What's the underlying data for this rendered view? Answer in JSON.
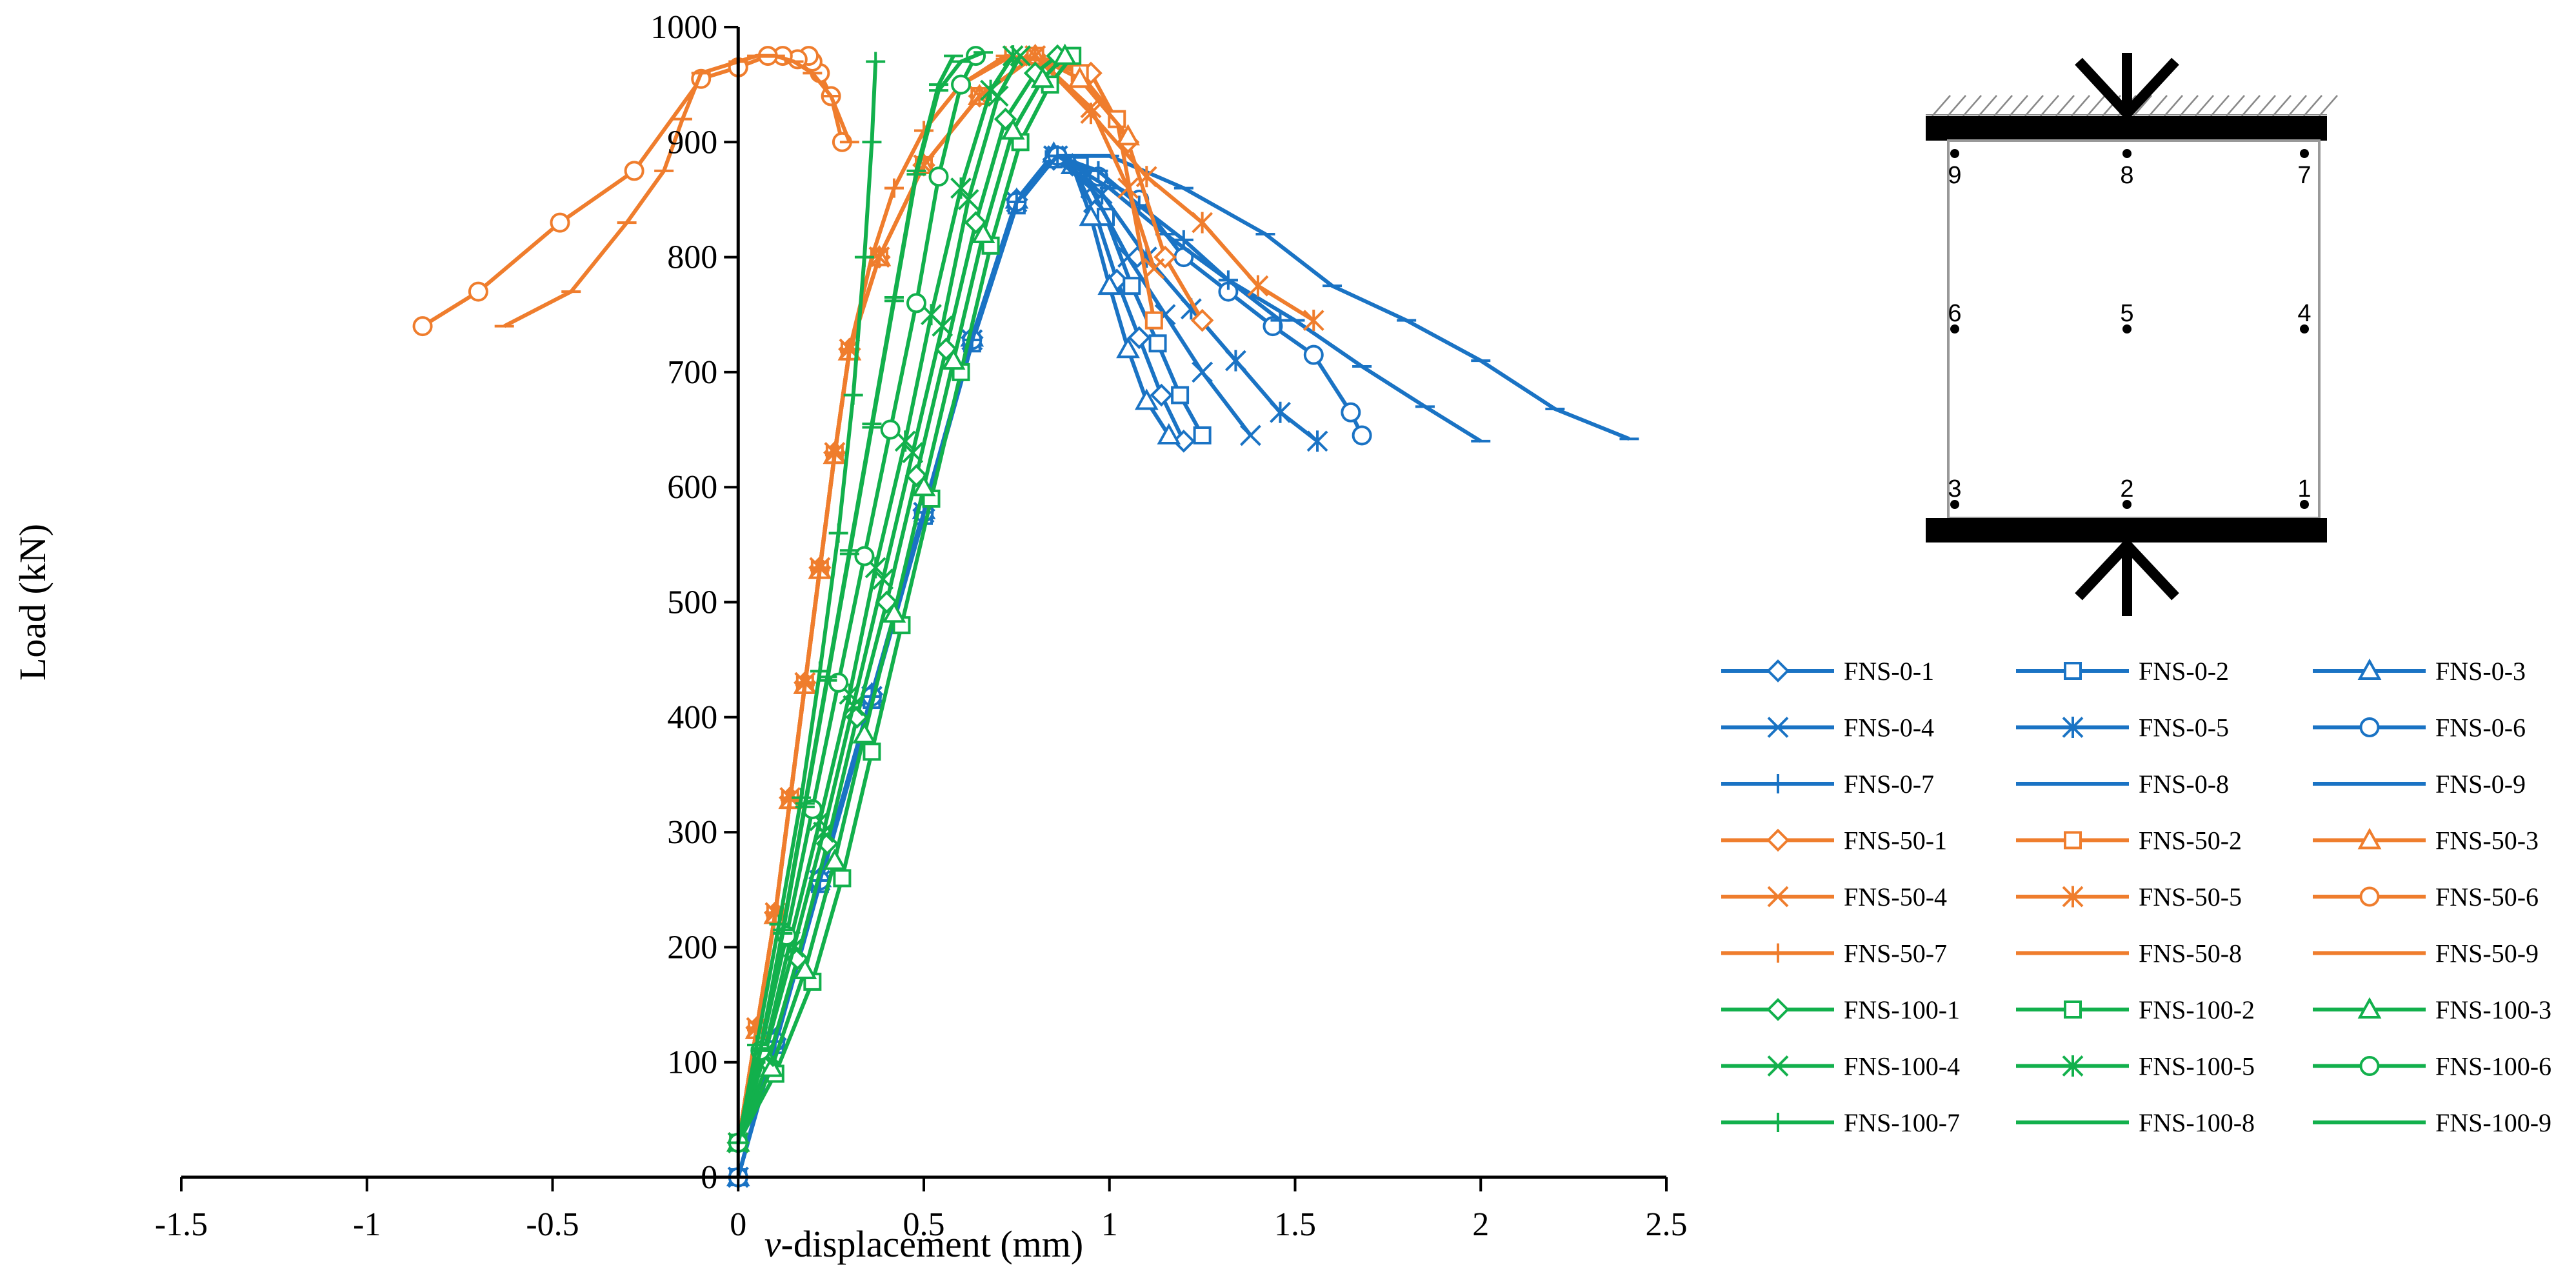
{
  "chart_data": {
    "type": "line",
    "xlabel_italic": "v",
    "xlabel_rest": "-displacement (mm)",
    "ylabel": "Load (kN)",
    "xlim": [
      -1.5,
      2.5
    ],
    "ylim": [
      0,
      1000
    ],
    "xticks": [
      -1.5,
      -1,
      -0.5,
      0,
      0.5,
      1,
      1.5,
      2,
      2.5
    ],
    "xtick_labels": [
      "-1.5",
      "-1",
      "-0.5",
      "0",
      "0.5",
      "1",
      "1.5",
      "2",
      "2.5"
    ],
    "yticks": [
      0,
      100,
      200,
      300,
      400,
      500,
      600,
      700,
      800,
      900,
      1000
    ],
    "ytick_labels": [
      "0",
      "100",
      "200",
      "300",
      "400",
      "500",
      "600",
      "700",
      "800",
      "900",
      "1000"
    ],
    "grid": false,
    "legend_position": "right",
    "group_colors": {
      "FNS-0": "#1a73c4",
      "FNS-50": "#ef7d2d",
      "FNS-100": "#12b04c"
    },
    "series": [
      {
        "name": "FNS-0-1",
        "color": "#1a73c4",
        "marker": "diamond",
        "x": [
          0,
          0.1,
          0.22,
          0.36,
          0.5,
          0.63,
          0.75,
          0.85,
          0.9,
          0.96,
          1.02,
          1.08,
          1.14,
          1.2
        ],
        "y": [
          0,
          120,
          260,
          420,
          580,
          730,
          850,
          885,
          880,
          840,
          780,
          730,
          680,
          640
        ]
      },
      {
        "name": "FNS-0-2",
        "color": "#1a73c4",
        "marker": "square",
        "x": [
          0,
          0.1,
          0.22,
          0.36,
          0.5,
          0.63,
          0.75,
          0.85,
          0.92,
          0.99,
          1.06,
          1.13,
          1.19,
          1.25
        ],
        "y": [
          0,
          115,
          255,
          415,
          575,
          725,
          845,
          885,
          880,
          835,
          775,
          725,
          680,
          645
        ]
      },
      {
        "name": "FNS-0-3",
        "color": "#1a73c4",
        "marker": "triangle",
        "x": [
          0,
          0.1,
          0.22,
          0.36,
          0.5,
          0.63,
          0.75,
          0.85,
          0.9,
          0.95,
          1.0,
          1.05,
          1.1,
          1.16
        ],
        "y": [
          0,
          120,
          260,
          420,
          580,
          730,
          850,
          890,
          880,
          835,
          775,
          720,
          675,
          645
        ]
      },
      {
        "name": "FNS-0-4",
        "color": "#1a73c4",
        "marker": "x",
        "x": [
          0,
          0.1,
          0.22,
          0.36,
          0.5,
          0.63,
          0.75,
          0.85,
          0.95,
          1.05,
          1.15,
          1.25,
          1.38
        ],
        "y": [
          0,
          118,
          258,
          418,
          578,
          728,
          848,
          888,
          860,
          800,
          750,
          700,
          645
        ]
      },
      {
        "name": "FNS-0-5",
        "color": "#1a73c4",
        "marker": "asterisk",
        "x": [
          0,
          0.1,
          0.22,
          0.36,
          0.5,
          0.63,
          0.75,
          0.86,
          0.98,
          1.1,
          1.22,
          1.34,
          1.46,
          1.56
        ],
        "y": [
          0,
          118,
          258,
          418,
          578,
          728,
          848,
          888,
          855,
          800,
          755,
          710,
          665,
          640
        ]
      },
      {
        "name": "FNS-0-6",
        "color": "#1a73c4",
        "marker": "circle",
        "x": [
          0,
          0.1,
          0.22,
          0.36,
          0.5,
          0.63,
          0.75,
          0.86,
          0.97,
          1.08,
          1.2,
          1.32,
          1.44,
          1.55,
          1.65,
          1.68
        ],
        "y": [
          0,
          118,
          258,
          418,
          578,
          728,
          848,
          888,
          870,
          850,
          800,
          770,
          740,
          715,
          665,
          645
        ]
      },
      {
        "name": "FNS-0-7",
        "color": "#1a73c4",
        "marker": "plus",
        "x": [
          0,
          0.1,
          0.22,
          0.36,
          0.5,
          0.63,
          0.75,
          0.86,
          0.97,
          1.08,
          1.2,
          1.32,
          1.46
        ],
        "y": [
          0,
          118,
          258,
          418,
          578,
          728,
          848,
          888,
          875,
          845,
          815,
          780,
          745
        ]
      },
      {
        "name": "FNS-0-8",
        "color": "#1a73c4",
        "marker": "dash",
        "x": [
          0,
          0.1,
          0.22,
          0.36,
          0.5,
          0.63,
          0.75,
          0.86,
          1.0,
          1.15,
          1.32,
          1.5,
          1.68,
          1.85,
          2.0
        ],
        "y": [
          0,
          118,
          258,
          418,
          578,
          728,
          848,
          888,
          860,
          820,
          780,
          745,
          705,
          670,
          640
        ]
      },
      {
        "name": "FNS-0-9",
        "color": "#1a73c4",
        "marker": "dash",
        "x": [
          0,
          0.1,
          0.22,
          0.36,
          0.5,
          0.63,
          0.75,
          0.86,
          1.0,
          1.2,
          1.42,
          1.6,
          1.8,
          2.0,
          2.2,
          2.4
        ],
        "y": [
          0,
          118,
          258,
          418,
          578,
          728,
          848,
          888,
          888,
          860,
          820,
          775,
          745,
          710,
          668,
          642
        ]
      },
      {
        "name": "FNS-50-1",
        "color": "#ef7d2d",
        "marker": "diamond",
        "x": [
          0,
          0.05,
          0.1,
          0.14,
          0.18,
          0.22,
          0.26,
          0.3,
          0.38,
          0.5,
          0.65,
          0.8,
          0.95,
          1.05,
          1.15,
          1.25
        ],
        "y": [
          30,
          130,
          230,
          330,
          430,
          530,
          630,
          720,
          800,
          880,
          940,
          975,
          960,
          900,
          800,
          745
        ]
      },
      {
        "name": "FNS-50-2",
        "color": "#ef7d2d",
        "marker": "square",
        "x": [
          0,
          0.05,
          0.1,
          0.14,
          0.18,
          0.22,
          0.26,
          0.3,
          0.38,
          0.5,
          0.65,
          0.8,
          0.92,
          1.02,
          1.12
        ],
        "y": [
          30,
          128,
          228,
          328,
          428,
          528,
          628,
          718,
          800,
          880,
          940,
          975,
          960,
          920,
          745
        ]
      },
      {
        "name": "FNS-50-3",
        "color": "#ef7d2d",
        "marker": "triangle",
        "x": [
          0,
          0.05,
          0.1,
          0.14,
          0.18,
          0.22,
          0.26,
          0.3,
          0.38,
          0.5,
          0.65,
          0.8,
          0.92,
          1.05
        ],
        "y": [
          30,
          128,
          228,
          328,
          428,
          528,
          628,
          718,
          800,
          880,
          940,
          975,
          955,
          905
        ]
      },
      {
        "name": "FNS-50-4",
        "color": "#ef7d2d",
        "marker": "x",
        "x": [
          0,
          0.05,
          0.1,
          0.14,
          0.18,
          0.22,
          0.26,
          0.3,
          0.38,
          0.5,
          0.65,
          0.8,
          0.95,
          1.05,
          1.12
        ],
        "y": [
          30,
          130,
          230,
          330,
          430,
          530,
          630,
          720,
          800,
          880,
          940,
          975,
          930,
          860,
          790
        ]
      },
      {
        "name": "FNS-50-5",
        "color": "#ef7d2d",
        "marker": "asterisk",
        "x": [
          0,
          0.05,
          0.1,
          0.14,
          0.18,
          0.22,
          0.26,
          0.3,
          0.38,
          0.5,
          0.65,
          0.8,
          0.95,
          1.1,
          1.25,
          1.4,
          1.55
        ],
        "y": [
          30,
          130,
          230,
          330,
          430,
          530,
          630,
          720,
          800,
          880,
          940,
          975,
          925,
          870,
          830,
          775,
          745
        ]
      },
      {
        "name": "FNS-50-6",
        "color": "#ef7d2d",
        "marker": "circle",
        "x": [
          0.28,
          0.25,
          0.22,
          0.2,
          0.19,
          0.16,
          0.12,
          0.08,
          0.0,
          -0.1,
          -0.28,
          -0.48,
          -0.7,
          -0.85
        ],
        "y": [
          900,
          940,
          960,
          970,
          975,
          972,
          975,
          975,
          965,
          955,
          875,
          830,
          770,
          740
        ]
      },
      {
        "name": "FNS-50-7",
        "color": "#ef7d2d",
        "marker": "plus",
        "x": [
          0,
          0.05,
          0.1,
          0.14,
          0.18,
          0.22,
          0.26,
          0.3,
          0.36,
          0.42,
          0.5,
          0.6,
          0.72,
          0.85
        ],
        "y": [
          30,
          130,
          230,
          330,
          430,
          530,
          630,
          720,
          800,
          860,
          910,
          950,
          975,
          970
        ]
      },
      {
        "name": "FNS-50-8",
        "color": "#ef7d2d",
        "marker": "dash",
        "x": [
          0,
          0.05,
          0.1,
          0.14,
          0.18,
          0.22,
          0.26,
          0.3,
          0.36,
          0.42,
          0.5,
          0.6,
          0.72,
          0.85
        ],
        "y": [
          30,
          128,
          228,
          328,
          428,
          528,
          628,
          718,
          800,
          860,
          910,
          950,
          972,
          965
        ]
      },
      {
        "name": "FNS-50-9",
        "color": "#ef7d2d",
        "marker": "dash",
        "x": [
          0.3,
          0.25,
          0.2,
          0.15,
          0.1,
          0.05,
          0.0,
          -0.1,
          -0.15,
          -0.2,
          -0.3,
          -0.45,
          -0.63
        ],
        "y": [
          900,
          940,
          960,
          970,
          975,
          975,
          970,
          960,
          920,
          875,
          830,
          770,
          740
        ]
      },
      {
        "name": "FNS-100-1",
        "color": "#12b04c",
        "marker": "diamond",
        "x": [
          0,
          0.08,
          0.16,
          0.24,
          0.32,
          0.4,
          0.48,
          0.56,
          0.64,
          0.72,
          0.8,
          0.86
        ],
        "y": [
          30,
          100,
          190,
          290,
          400,
          500,
          610,
          720,
          830,
          920,
          960,
          975
        ]
      },
      {
        "name": "FNS-100-2",
        "color": "#12b04c",
        "marker": "square",
        "x": [
          0,
          0.1,
          0.2,
          0.28,
          0.36,
          0.44,
          0.52,
          0.6,
          0.68,
          0.76,
          0.84,
          0.9
        ],
        "y": [
          30,
          90,
          170,
          260,
          370,
          480,
          590,
          700,
          810,
          900,
          950,
          975
        ]
      },
      {
        "name": "FNS-100-3",
        "color": "#12b04c",
        "marker": "triangle",
        "x": [
          0,
          0.09,
          0.18,
          0.26,
          0.34,
          0.42,
          0.5,
          0.58,
          0.66,
          0.74,
          0.82,
          0.88
        ],
        "y": [
          30,
          95,
          180,
          275,
          385,
          490,
          600,
          710,
          820,
          910,
          955,
          975
        ]
      },
      {
        "name": "FNS-100-4",
        "color": "#12b04c",
        "marker": "x",
        "x": [
          0,
          0.07,
          0.15,
          0.23,
          0.31,
          0.39,
          0.47,
          0.55,
          0.62,
          0.7,
          0.76
        ],
        "y": [
          30,
          105,
          200,
          300,
          410,
          520,
          630,
          740,
          850,
          940,
          975
        ]
      },
      {
        "name": "FNS-100-5",
        "color": "#12b04c",
        "marker": "asterisk",
        "x": [
          0,
          0.07,
          0.14,
          0.22,
          0.3,
          0.37,
          0.45,
          0.52,
          0.6,
          0.68,
          0.74
        ],
        "y": [
          30,
          108,
          205,
          310,
          420,
          530,
          640,
          750,
          860,
          945,
          975
        ]
      },
      {
        "name": "FNS-100-6",
        "color": "#12b04c",
        "marker": "circle",
        "x": [
          0,
          0.06,
          0.13,
          0.2,
          0.27,
          0.34,
          0.41,
          0.48,
          0.54,
          0.6,
          0.64
        ],
        "y": [
          30,
          110,
          210,
          320,
          430,
          540,
          650,
          760,
          870,
          950,
          975
        ]
      },
      {
        "name": "FNS-100-7",
        "color": "#12b04c",
        "marker": "plus",
        "x": [
          0,
          0.05,
          0.11,
          0.17,
          0.22,
          0.27,
          0.31,
          0.34,
          0.36,
          0.37
        ],
        "y": [
          30,
          115,
          220,
          330,
          440,
          560,
          680,
          800,
          900,
          970
        ]
      },
      {
        "name": "FNS-100-8",
        "color": "#12b04c",
        "marker": "dash",
        "x": [
          0,
          0.06,
          0.12,
          0.18,
          0.24,
          0.3,
          0.36,
          0.42,
          0.48,
          0.54,
          0.58
        ],
        "y": [
          30,
          112,
          215,
          325,
          435,
          545,
          655,
          765,
          875,
          950,
          975
        ]
      },
      {
        "name": "FNS-100-9",
        "color": "#12b04c",
        "marker": "dash",
        "x": [
          0,
          0.06,
          0.12,
          0.18,
          0.24,
          0.3,
          0.36,
          0.42,
          0.48,
          0.54,
          0.6,
          0.66
        ],
        "y": [
          30,
          110,
          212,
          322,
          432,
          542,
          652,
          762,
          872,
          945,
          970,
          978
        ]
      }
    ]
  },
  "inset": {
    "point_labels": [
      "1",
      "2",
      "3",
      "4",
      "5",
      "6",
      "7",
      "8",
      "9"
    ]
  }
}
